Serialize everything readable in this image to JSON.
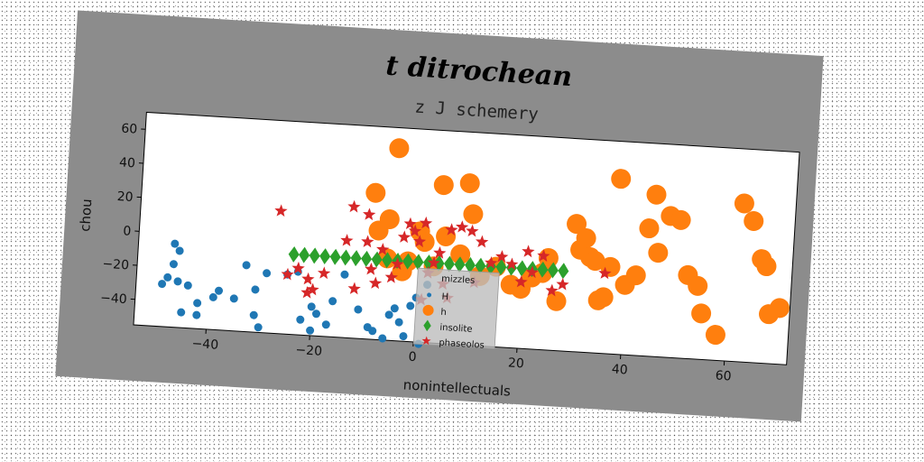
{
  "figure": {
    "suptitle": "t ditrochean",
    "background_color": "#8c8c8c"
  },
  "chart_data": {
    "type": "scatter",
    "title": "z J schemery",
    "xlabel": "nonintellectuals",
    "ylabel": "chou",
    "xlim": [
      -54,
      72
    ],
    "ylim": [
      -55,
      70
    ],
    "xticks": [
      -40,
      -20,
      0,
      20,
      40,
      60
    ],
    "yticks": [
      -40,
      -20,
      0,
      20,
      40,
      60
    ],
    "grid": false,
    "legend": {
      "title": "mizzles",
      "position": "lower-center"
    },
    "series": [
      {
        "name": "H",
        "marker": "circle",
        "color": "#1f77b4",
        "points": [
          [
            -47,
            -6
          ],
          [
            -46,
            -10
          ],
          [
            -47,
            -18
          ],
          [
            -48,
            -26
          ],
          [
            -46,
            -28
          ],
          [
            -44,
            -30
          ],
          [
            -49,
            -30
          ],
          [
            -45,
            -46
          ],
          [
            -42,
            -40
          ],
          [
            -42,
            -47
          ],
          [
            -39,
            -36
          ],
          [
            -38,
            -32
          ],
          [
            -35,
            -36
          ],
          [
            -33,
            -16
          ],
          [
            -31,
            -30
          ],
          [
            -31,
            -45
          ],
          [
            -30,
            -52
          ],
          [
            -29,
            -20
          ],
          [
            -25,
            -20
          ],
          [
            -23,
            -18
          ],
          [
            -22,
            -46
          ],
          [
            -20,
            -38
          ],
          [
            -19,
            -42
          ],
          [
            -20,
            -52
          ],
          [
            -17,
            -48
          ],
          [
            -16,
            -34
          ],
          [
            -14,
            -18
          ],
          [
            -11,
            -38
          ],
          [
            -9,
            -48
          ],
          [
            -8,
            -50
          ],
          [
            -6,
            -54
          ],
          [
            -5,
            -40
          ],
          [
            -4,
            -36
          ],
          [
            -2,
            -52
          ],
          [
            -1,
            -34
          ],
          [
            0,
            -29
          ],
          [
            1,
            -56
          ],
          [
            2,
            -21
          ],
          [
            -3,
            -44
          ]
        ]
      },
      {
        "name": "h",
        "marker": "circle",
        "color": "#ff7f0e",
        "points": [
          [
            -9,
            31
          ],
          [
            -8,
            9
          ],
          [
            -6,
            16
          ],
          [
            -5,
            58
          ],
          [
            -6,
            -7
          ],
          [
            -3,
            -14
          ],
          [
            -2,
            -8
          ],
          [
            0,
            10
          ],
          [
            1,
            4
          ],
          [
            3,
            -10
          ],
          [
            4,
            38
          ],
          [
            5,
            8
          ],
          [
            8,
            -2
          ],
          [
            9,
            40
          ],
          [
            10,
            22
          ],
          [
            12,
            -14
          ],
          [
            15,
            -8
          ],
          [
            18,
            -18
          ],
          [
            20,
            -20
          ],
          [
            22,
            -13
          ],
          [
            24,
            -10
          ],
          [
            25,
            -1
          ],
          [
            27,
            -26
          ],
          [
            30,
            20
          ],
          [
            31,
            5
          ],
          [
            32,
            12
          ],
          [
            33,
            1
          ],
          [
            34,
            -1
          ],
          [
            35,
            -24
          ],
          [
            36,
            -22
          ],
          [
            37,
            -4
          ],
          [
            38,
            48
          ],
          [
            40,
            -14
          ],
          [
            42,
            -8
          ],
          [
            44,
            20
          ],
          [
            45,
            40
          ],
          [
            46,
            6
          ],
          [
            48,
            28
          ],
          [
            50,
            26
          ],
          [
            52,
            -6
          ],
          [
            54,
            -12
          ],
          [
            55,
            -28
          ],
          [
            58,
            -40
          ],
          [
            62,
            38
          ],
          [
            64,
            28
          ],
          [
            66,
            6
          ],
          [
            67,
            2
          ],
          [
            68,
            -26
          ],
          [
            70,
            -22
          ]
        ]
      },
      {
        "name": "insolite",
        "marker": "diamond",
        "color": "#2ca02c",
        "points": [
          [
            -24,
            -8
          ],
          [
            -22,
            -8
          ],
          [
            -20,
            -8
          ],
          [
            -18,
            -8
          ],
          [
            -16,
            -8
          ],
          [
            -14,
            -8
          ],
          [
            -12,
            -8
          ],
          [
            -10,
            -8
          ],
          [
            -8,
            -8
          ],
          [
            -6,
            -8
          ],
          [
            -4,
            -8
          ],
          [
            -2,
            -8
          ],
          [
            0,
            -8
          ],
          [
            2,
            -8
          ],
          [
            4,
            -8
          ],
          [
            6,
            -8
          ],
          [
            8,
            -8
          ],
          [
            10,
            -8
          ],
          [
            12,
            -8
          ],
          [
            14,
            -8
          ],
          [
            16,
            -8
          ],
          [
            18,
            -8
          ],
          [
            20,
            -8
          ],
          [
            22,
            -8
          ],
          [
            24,
            -8
          ],
          [
            26,
            -8
          ],
          [
            28,
            -8
          ]
        ]
      },
      {
        "name": "phaseolos",
        "marker": "star",
        "color": "#d62728",
        "points": [
          [
            -27,
            17
          ],
          [
            -25,
            -20
          ],
          [
            -23,
            -16
          ],
          [
            -21,
            -22
          ],
          [
            -21,
            -30
          ],
          [
            -20,
            -28
          ],
          [
            -18,
            -18
          ],
          [
            -14,
            2
          ],
          [
            -13,
            22
          ],
          [
            -12,
            -26
          ],
          [
            -10,
            18
          ],
          [
            -10,
            2
          ],
          [
            -9,
            -14
          ],
          [
            -8,
            -22
          ],
          [
            -7,
            -2
          ],
          [
            -5,
            -18
          ],
          [
            -4,
            -10
          ],
          [
            -3,
            6
          ],
          [
            -2,
            14
          ],
          [
            -1,
            10
          ],
          [
            0,
            4
          ],
          [
            1,
            15
          ],
          [
            1,
            -30
          ],
          [
            2,
            -14
          ],
          [
            3,
            -8
          ],
          [
            4,
            -2
          ],
          [
            5,
            -20
          ],
          [
            6,
            -28
          ],
          [
            6,
            12
          ],
          [
            8,
            14
          ],
          [
            10,
            12
          ],
          [
            11,
            -18
          ],
          [
            12,
            6
          ],
          [
            14,
            -6
          ],
          [
            16,
            -2
          ],
          [
            18,
            -6
          ],
          [
            20,
            -16
          ],
          [
            21,
            2
          ],
          [
            22,
            -10
          ],
          [
            24,
            0
          ],
          [
            26,
            -20
          ],
          [
            28,
            -16
          ],
          [
            36,
            -8
          ]
        ]
      }
    ]
  }
}
